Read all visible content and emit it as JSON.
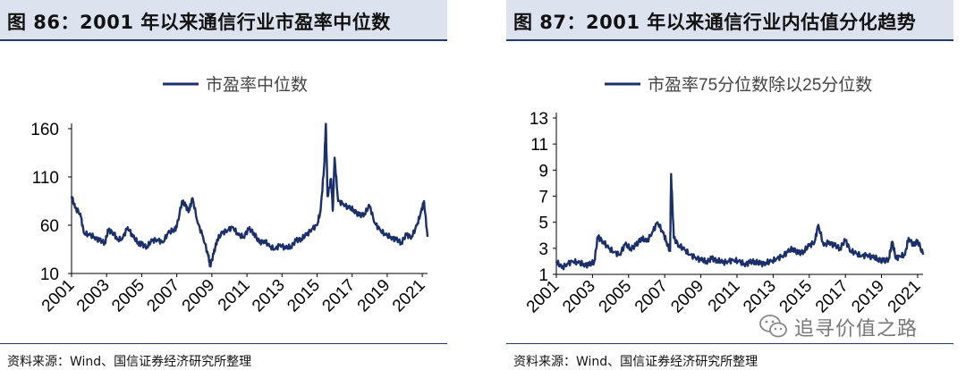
{
  "left": {
    "figure_title": "图 86：2001 年以来通信行业市盈率中位数",
    "source": "资料来源：Wind、国信证券经济研究所整理"
  },
  "right": {
    "figure_title": "图 87：2001 年以来通信行业内估值分化趋势",
    "source": "资料来源：Wind、国信证券经济研究所整理"
  },
  "watermark": {
    "text": "追寻价值之路",
    "icon": "wechat-icon"
  },
  "colors": {
    "series": "#1a2f6b",
    "title_bg": "#dce3ee",
    "rule": "#1f3a6b"
  },
  "chart_data": [
    {
      "type": "line",
      "title": "",
      "series": [
        {
          "name": "市盈率中位数",
          "x": [
            2001.0,
            2001.2,
            2001.5,
            2001.7,
            2002.0,
            2002.3,
            2002.6,
            2002.9,
            2003.1,
            2003.4,
            2003.6,
            2003.9,
            2004.2,
            2004.5,
            2004.8,
            2005.0,
            2005.3,
            2005.6,
            2005.9,
            2006.2,
            2006.5,
            2006.8,
            2007.0,
            2007.3,
            2007.5,
            2007.7,
            2007.9,
            2008.2,
            2008.5,
            2008.8,
            2008.9,
            2009.1,
            2009.3,
            2009.6,
            2009.9,
            2010.2,
            2010.5,
            2010.8,
            2011.1,
            2011.4,
            2011.7,
            2012.0,
            2012.3,
            2012.6,
            2012.9,
            2013.2,
            2013.5,
            2013.8,
            2014.1,
            2014.4,
            2014.7,
            2015.0,
            2015.2,
            2015.4,
            2015.5,
            2015.6,
            2015.8,
            2015.9,
            2016.0,
            2016.2,
            2016.5,
            2016.8,
            2017.1,
            2017.4,
            2017.7,
            2018.0,
            2018.3,
            2018.6,
            2018.9,
            2019.2,
            2019.5,
            2019.8,
            2020.1,
            2020.4,
            2020.7,
            2020.9,
            2021.1,
            2021.3
          ],
          "values": [
            90,
            78,
            72,
            52,
            50,
            48,
            44,
            42,
            55,
            52,
            45,
            46,
            58,
            48,
            42,
            40,
            38,
            44,
            45,
            42,
            52,
            55,
            58,
            85,
            80,
            75,
            88,
            62,
            48,
            28,
            18,
            30,
            45,
            52,
            55,
            58,
            50,
            48,
            56,
            52,
            42,
            44,
            38,
            35,
            40,
            36,
            38,
            44,
            46,
            50,
            56,
            60,
            75,
            120,
            165,
            90,
            108,
            75,
            130,
            85,
            82,
            78,
            76,
            70,
            72,
            80,
            62,
            55,
            50,
            48,
            45,
            42,
            50,
            48,
            60,
            72,
            85,
            48
          ]
        }
      ],
      "xlim": [
        2001,
        2021.3
      ],
      "xticks": [
        "2001",
        "2003",
        "2005",
        "2007",
        "2009",
        "2011",
        "2013",
        "2015",
        "2017",
        "2019",
        "2021"
      ],
      "ylim": [
        10,
        160
      ],
      "yticks": [
        "10",
        "60",
        "110",
        "160"
      ],
      "legend": "top-center",
      "grid": false
    },
    {
      "type": "line",
      "title": "",
      "series": [
        {
          "name": "市盈率75分位数除以25分位数",
          "x": [
            2001.0,
            2001.3,
            2001.6,
            2001.9,
            2002.2,
            2002.5,
            2002.8,
            2003.1,
            2003.3,
            2003.6,
            2003.9,
            2004.2,
            2004.5,
            2004.8,
            2005.1,
            2005.4,
            2005.7,
            2006.0,
            2006.3,
            2006.6,
            2006.9,
            2007.1,
            2007.3,
            2007.35,
            2007.5,
            2007.8,
            2008.1,
            2008.4,
            2008.7,
            2009.0,
            2009.3,
            2009.6,
            2009.9,
            2010.2,
            2010.5,
            2010.8,
            2011.1,
            2011.4,
            2011.7,
            2012.0,
            2012.3,
            2012.6,
            2012.9,
            2013.2,
            2013.5,
            2013.8,
            2014.1,
            2014.4,
            2014.7,
            2015.0,
            2015.3,
            2015.5,
            2015.8,
            2016.1,
            2016.4,
            2016.7,
            2017.0,
            2017.3,
            2017.6,
            2017.9,
            2018.2,
            2018.5,
            2018.8,
            2019.1,
            2019.4,
            2019.6,
            2019.8,
            2020.0,
            2020.3,
            2020.5,
            2020.8,
            2021.0,
            2021.3
          ],
          "values": [
            2.0,
            1.5,
            1.8,
            2.0,
            1.9,
            1.8,
            1.7,
            2.0,
            3.9,
            3.5,
            3.0,
            2.7,
            2.5,
            3.3,
            3.0,
            3.2,
            3.8,
            3.5,
            4.2,
            5.0,
            4.2,
            3.5,
            2.8,
            8.7,
            3.8,
            3.2,
            2.9,
            2.5,
            2.3,
            2.1,
            2.0,
            2.2,
            2.1,
            1.9,
            2.0,
            2.1,
            2.0,
            1.8,
            1.9,
            2.0,
            1.8,
            1.9,
            2.0,
            2.2,
            2.4,
            2.7,
            3.0,
            2.6,
            2.8,
            3.2,
            3.5,
            4.8,
            3.2,
            3.5,
            3.2,
            3.0,
            3.6,
            2.8,
            2.6,
            2.4,
            2.5,
            2.3,
            2.2,
            2.0,
            2.2,
            3.5,
            2.2,
            2.4,
            2.5,
            3.8,
            3.2,
            3.6,
            2.5
          ]
        }
      ],
      "xlim": [
        2001,
        2021.3
      ],
      "xticks": [
        "2001",
        "2003",
        "2005",
        "2007",
        "2009",
        "2011",
        "2013",
        "2015",
        "2017",
        "2019",
        "2021"
      ],
      "ylim": [
        1,
        13
      ],
      "yticks": [
        "1",
        "3",
        "5",
        "7",
        "9",
        "11",
        "13"
      ],
      "legend": "top-center",
      "grid": false
    }
  ]
}
